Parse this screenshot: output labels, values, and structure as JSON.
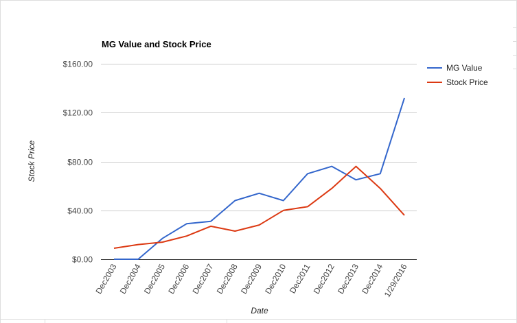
{
  "chart_data": {
    "type": "line",
    "title": "MG Value and Stock Price",
    "xlabel": "Date",
    "ylabel": "Stock Price",
    "categories": [
      "Dec2003",
      "Dec2004",
      "Dec2005",
      "Dec2006",
      "Dec2007",
      "Dec2008",
      "Dec2009",
      "Dec2010",
      "Dec2011",
      "Dec2012",
      "Dec2013",
      "Dec2014",
      "1/29/2016"
    ],
    "y_ticks": [
      "$0.00",
      "$40.00",
      "$80.00",
      "$120.00",
      "$160.00"
    ],
    "ylim": [
      0,
      160
    ],
    "grid": true,
    "legend_position": "right",
    "series": [
      {
        "name": "MG Value",
        "color": "#3366cc",
        "values": [
          0,
          0,
          17,
          29,
          31,
          48,
          54,
          48,
          70,
          76,
          65,
          70,
          132
        ]
      },
      {
        "name": "Stock Price",
        "color": "#dc3912",
        "values": [
          9,
          12,
          14,
          19,
          27,
          23,
          28,
          40,
          43,
          58,
          76,
          58,
          36
        ]
      }
    ]
  }
}
